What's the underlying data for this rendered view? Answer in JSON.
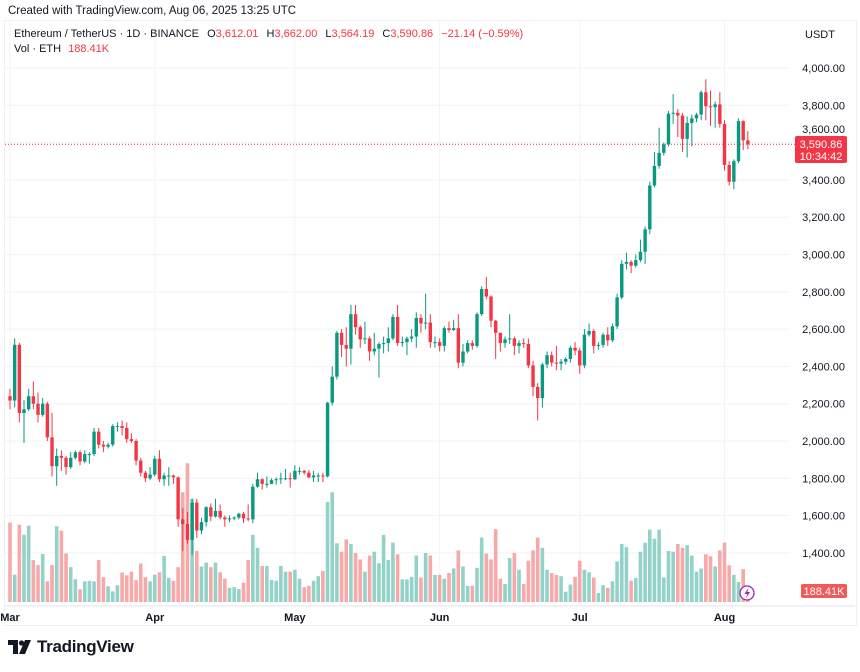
{
  "header": {
    "created_text": "Created with TradingView.com, Aug 06, 2025 13:25 UTC",
    "symbol": "Ethereum / TetherUS · 1D · BINANCE",
    "open_label": "O",
    "open": "3,612.01",
    "high_label": "H",
    "high": "3,662.00",
    "low_label": "L",
    "low": "3,564.19",
    "close_label": "C",
    "close": "3,590.86",
    "change": "−21.14 (−0.59%)",
    "vol_label": "Vol · ETH",
    "vol_value": "188.41K"
  },
  "price_axis": {
    "currency": "USDT",
    "last_price_label": "3,590.86",
    "countdown": "10:34:42",
    "vol_label": "188.41K"
  },
  "colors": {
    "up": "#089981",
    "down": "#f23645",
    "vol_up": "#92d2c8",
    "vol_down": "#f7a8a8",
    "grid": "#f2f3f5",
    "accent_icon": "#9c27b0"
  },
  "branding": {
    "logo_text": "TradingView"
  },
  "chart_data": {
    "type": "candlestick",
    "title": "",
    "ylim": [
      1250,
      4100
    ],
    "y_ticks": [
      {
        "v": 4000,
        "label": "4,000.00"
      },
      {
        "v": 3800,
        "label": "3,800.00"
      },
      {
        "v": 3600,
        "label": "3,600.00"
      },
      {
        "v": 3400,
        "label": "3,400.00"
      },
      {
        "v": 3200,
        "label": "3,200.00"
      },
      {
        "v": 3000,
        "label": "3,000.00"
      },
      {
        "v": 2800,
        "label": "2,800.00"
      },
      {
        "v": 2600,
        "label": "2,600.00"
      },
      {
        "v": 2400,
        "label": "2,400.00"
      },
      {
        "v": 2200,
        "label": "2,200.00"
      },
      {
        "v": 2000,
        "label": "2,000.00"
      },
      {
        "v": 1800,
        "label": "1,800.00"
      },
      {
        "v": 1600,
        "label": "1,600.00"
      },
      {
        "v": 1400,
        "label": "1,400.00"
      }
    ],
    "x_ticks": [
      {
        "date": "2025-03-01",
        "label": "Mar"
      },
      {
        "date": "2025-04-01",
        "label": "Apr"
      },
      {
        "date": "2025-05-01",
        "label": "May"
      },
      {
        "date": "2025-06-01",
        "label": "Jun"
      },
      {
        "date": "2025-07-01",
        "label": "Jul"
      },
      {
        "date": "2025-08-01",
        "label": "Aug"
      }
    ],
    "grid": true,
    "last_price": 3590.86,
    "volume_unit": "K ETH",
    "dates": [
      "03-01",
      "03-02",
      "03-03",
      "03-04",
      "03-05",
      "03-06",
      "03-07",
      "03-08",
      "03-09",
      "03-10",
      "03-11",
      "03-12",
      "03-13",
      "03-14",
      "03-15",
      "03-16",
      "03-17",
      "03-18",
      "03-19",
      "03-20",
      "03-21",
      "03-22",
      "03-23",
      "03-24",
      "03-25",
      "03-26",
      "03-27",
      "03-28",
      "03-29",
      "03-30",
      "03-31",
      "04-01",
      "04-02",
      "04-03",
      "04-04",
      "04-05",
      "04-06",
      "04-07",
      "04-08",
      "04-09",
      "04-10",
      "04-11",
      "04-12",
      "04-13",
      "04-14",
      "04-15",
      "04-16",
      "04-17",
      "04-18",
      "04-19",
      "04-20",
      "04-21",
      "04-22",
      "04-23",
      "04-24",
      "04-25",
      "04-26",
      "04-27",
      "04-28",
      "04-29",
      "04-30",
      "05-01",
      "05-02",
      "05-03",
      "05-04",
      "05-05",
      "05-06",
      "05-07",
      "05-08",
      "05-09",
      "05-10",
      "05-11",
      "05-12",
      "05-13",
      "05-14",
      "05-15",
      "05-16",
      "05-17",
      "05-18",
      "05-19",
      "05-20",
      "05-21",
      "05-22",
      "05-23",
      "05-24",
      "05-25",
      "05-26",
      "05-27",
      "05-28",
      "05-29",
      "05-30",
      "05-31",
      "06-01",
      "06-02",
      "06-03",
      "06-04",
      "06-05",
      "06-06",
      "06-07",
      "06-08",
      "06-09",
      "06-10",
      "06-11",
      "06-12",
      "06-13",
      "06-14",
      "06-15",
      "06-16",
      "06-17",
      "06-18",
      "06-19",
      "06-20",
      "06-21",
      "06-22",
      "06-23",
      "06-24",
      "06-25",
      "06-26",
      "06-27",
      "06-28",
      "06-29",
      "06-30",
      "07-01",
      "07-02",
      "07-03",
      "07-04",
      "07-05",
      "07-06",
      "07-07",
      "07-08",
      "07-09",
      "07-10",
      "07-11",
      "07-12",
      "07-13",
      "07-14",
      "07-15",
      "07-16",
      "07-17",
      "07-18",
      "07-19",
      "07-20",
      "07-21",
      "07-22",
      "07-23",
      "07-24",
      "07-25",
      "07-26",
      "07-27",
      "07-28",
      "07-29",
      "07-30",
      "07-31",
      "08-01",
      "08-02",
      "08-03",
      "08-04",
      "08-05",
      "08-06"
    ],
    "open": [
      2240,
      2217,
      2516,
      2150,
      2170,
      2240,
      2200,
      2140,
      2200,
      2020,
      1865,
      1920,
      1910,
      1860,
      1910,
      1940,
      1890,
      1930,
      1930,
      2050,
      1980,
      1970,
      1980,
      2080,
      2080,
      2070,
      2010,
      2000,
      1895,
      1830,
      1800,
      1820,
      1905,
      1795,
      1815,
      1815,
      1805,
      1580,
      1555,
      1470,
      1670,
      1520,
      1565,
      1645,
      1595,
      1625,
      1590,
      1580,
      1585,
      1590,
      1610,
      1585,
      1580,
      1755,
      1795,
      1770,
      1770,
      1790,
      1795,
      1800,
      1800,
      1795,
      1840,
      1840,
      1830,
      1805,
      1815,
      1815,
      1810,
      2205,
      2345,
      2580,
      2515,
      2495,
      2680,
      2610,
      2545,
      2550,
      2480,
      2495,
      2520,
      2525,
      2550,
      2665,
      2525,
      2530,
      2550,
      2560,
      2660,
      2630,
      2635,
      2530,
      2530,
      2510,
      2605,
      2595,
      2605,
      2420,
      2480,
      2525,
      2510,
      2680,
      2815,
      2775,
      2645,
      2580,
      2525,
      2545,
      2550,
      2510,
      2525,
      2520,
      2405,
      2290,
      2230,
      2410,
      2460,
      2420,
      2415,
      2425,
      2440,
      2500,
      2485,
      2405,
      2570,
      2590,
      2510,
      2515,
      2570,
      2540,
      2615,
      2770,
      2950,
      2960,
      2940,
      2970,
      3015,
      3135,
      3370,
      3475,
      3545,
      3590,
      3755,
      3760,
      3745,
      3620,
      3705,
      3730,
      3750,
      3870,
      3795,
      3790,
      3805,
      3700,
      3480,
      3390,
      3500,
      3715,
      3612.01
    ],
    "high": [
      2280,
      2550,
      2525,
      2220,
      2280,
      2320,
      2260,
      2230,
      2210,
      2150,
      1960,
      1950,
      1920,
      1940,
      1950,
      1950,
      1950,
      1940,
      2070,
      2070,
      2000,
      1990,
      2090,
      2100,
      2110,
      2100,
      2040,
      2010,
      1910,
      1840,
      1860,
      1920,
      1950,
      1830,
      1860,
      1820,
      1810,
      1640,
      1620,
      1690,
      1690,
      1590,
      1650,
      1665,
      1690,
      1660,
      1600,
      1600,
      1595,
      1615,
      1620,
      1660,
      1770,
      1830,
      1800,
      1810,
      1800,
      1805,
      1830,
      1850,
      1830,
      1870,
      1860,
      1845,
      1845,
      1840,
      1830,
      1830,
      2210,
      2400,
      2590,
      2600,
      2610,
      2730,
      2730,
      2620,
      2640,
      2560,
      2580,
      2530,
      2560,
      2610,
      2680,
      2730,
      2560,
      2560,
      2600,
      2690,
      2680,
      2790,
      2680,
      2560,
      2550,
      2615,
      2640,
      2650,
      2680,
      2520,
      2540,
      2540,
      2690,
      2830,
      2880,
      2780,
      2650,
      2580,
      2560,
      2680,
      2560,
      2540,
      2550,
      2550,
      2430,
      2310,
      2420,
      2480,
      2480,
      2510,
      2440,
      2450,
      2510,
      2530,
      2500,
      2600,
      2630,
      2600,
      2530,
      2580,
      2610,
      2630,
      2790,
      2970,
      3010,
      2970,
      3000,
      3080,
      3150,
      3390,
      3550,
      3680,
      3600,
      3770,
      3860,
      3780,
      3760,
      3740,
      3750,
      3760,
      3880,
      3940,
      3880,
      3820,
      3870,
      3720,
      3500,
      3510,
      3730,
      3720,
      3662.0
    ],
    "low": [
      2170,
      2180,
      2100,
      1990,
      2160,
      2170,
      2100,
      2130,
      2000,
      1810,
      1760,
      1840,
      1820,
      1850,
      1900,
      1870,
      1880,
      1880,
      1920,
      1960,
      1940,
      1960,
      1970,
      2050,
      2030,
      1990,
      1990,
      1870,
      1810,
      1780,
      1790,
      1810,
      1780,
      1760,
      1760,
      1770,
      1540,
      1410,
      1450,
      1390,
      1480,
      1500,
      1540,
      1570,
      1590,
      1580,
      1540,
      1565,
      1575,
      1580,
      1560,
      1570,
      1560,
      1750,
      1740,
      1750,
      1770,
      1765,
      1770,
      1790,
      1750,
      1790,
      1820,
      1820,
      1800,
      1780,
      1780,
      1780,
      1805,
      2190,
      2330,
      2450,
      2400,
      2410,
      2570,
      2500,
      2520,
      2430,
      2460,
      2340,
      2470,
      2480,
      2540,
      2510,
      2505,
      2460,
      2530,
      2500,
      2580,
      2600,
      2500,
      2500,
      2480,
      2480,
      2580,
      2590,
      2390,
      2400,
      2470,
      2490,
      2500,
      2670,
      2760,
      2610,
      2440,
      2480,
      2500,
      2520,
      2460,
      2470,
      2500,
      2390,
      2240,
      2110,
      2180,
      2390,
      2400,
      2380,
      2380,
      2410,
      2420,
      2460,
      2360,
      2390,
      2560,
      2470,
      2490,
      2500,
      2510,
      2530,
      2600,
      2760,
      2920,
      2900,
      2930,
      2960,
      2950,
      3110,
      3360,
      3460,
      3530,
      3580,
      3700,
      3630,
      3550,
      3520,
      3580,
      3710,
      3720,
      3720,
      3690,
      3680,
      3680,
      3450,
      3370,
      3350,
      3490,
      3560,
      3564.19
    ],
    "close": [
      2217,
      2516,
      2150,
      2170,
      2240,
      2200,
      2140,
      2200,
      2020,
      1865,
      1920,
      1910,
      1860,
      1910,
      1940,
      1890,
      1930,
      1930,
      2050,
      1980,
      1970,
      1980,
      2080,
      2080,
      2070,
      2010,
      2000,
      1895,
      1830,
      1800,
      1820,
      1905,
      1795,
      1815,
      1815,
      1805,
      1580,
      1555,
      1470,
      1670,
      1520,
      1565,
      1645,
      1595,
      1625,
      1590,
      1580,
      1585,
      1590,
      1610,
      1585,
      1580,
      1755,
      1795,
      1770,
      1770,
      1790,
      1795,
      1800,
      1800,
      1795,
      1840,
      1840,
      1830,
      1805,
      1815,
      1815,
      1810,
      2205,
      2345,
      2580,
      2515,
      2495,
      2680,
      2610,
      2545,
      2550,
      2480,
      2495,
      2520,
      2525,
      2550,
      2665,
      2525,
      2530,
      2550,
      2560,
      2660,
      2630,
      2635,
      2530,
      2530,
      2510,
      2605,
      2595,
      2605,
      2420,
      2480,
      2525,
      2510,
      2680,
      2815,
      2775,
      2645,
      2580,
      2525,
      2545,
      2550,
      2510,
      2525,
      2520,
      2405,
      2290,
      2230,
      2410,
      2460,
      2420,
      2415,
      2425,
      2440,
      2500,
      2485,
      2405,
      2570,
      2590,
      2510,
      2515,
      2570,
      2540,
      2615,
      2770,
      2950,
      2960,
      2940,
      2970,
      3015,
      3135,
      3370,
      3475,
      3545,
      3590,
      3755,
      3760,
      3745,
      3620,
      3705,
      3730,
      3750,
      3870,
      3795,
      3790,
      3805,
      3700,
      3480,
      3390,
      3500,
      3715,
      3612.01,
      3590.86
    ],
    "volume": [
      1230,
      423,
      1199,
      1043,
      1184,
      649,
      573,
      743,
      320,
      573,
      1175,
      1105,
      752,
      541,
      353,
      197,
      320,
      329,
      320,
      649,
      385,
      244,
      164,
      259,
      456,
      414,
      470,
      338,
      597,
      385,
      320,
      423,
      461,
      715,
      376,
      329,
      540,
      1700,
      2150,
      1600,
      790,
      550,
      610,
      540,
      610,
      460,
      360,
      220,
      230,
      200,
      300,
      650,
      1040,
      840,
      560,
      560,
      340,
      330,
      560,
      470,
      470,
      500,
      360,
      230,
      250,
      330,
      400,
      480,
      1550,
      1700,
      910,
      780,
      970,
      900,
      760,
      660,
      470,
      720,
      780,
      600,
      1040,
      650,
      920,
      740,
      350,
      350,
      390,
      720,
      380,
      760,
      720,
      420,
      420,
      360,
      450,
      520,
      800,
      550,
      250,
      250,
      530,
      1000,
      750,
      660,
      1130,
      360,
      280,
      680,
      760,
      500,
      280,
      640,
      800,
      1000,
      840,
      500,
      450,
      420,
      400,
      160,
      270,
      390,
      640,
      500,
      460,
      380,
      140,
      260,
      220,
      320,
      630,
      900,
      850,
      330,
      370,
      780,
      920,
      1120,
      980,
      1120,
      380,
      790,
      780,
      900,
      840,
      880,
      720,
      470,
      520,
      740,
      710,
      550,
      800,
      920,
      570,
      420,
      310,
      510,
      188.41
    ]
  }
}
